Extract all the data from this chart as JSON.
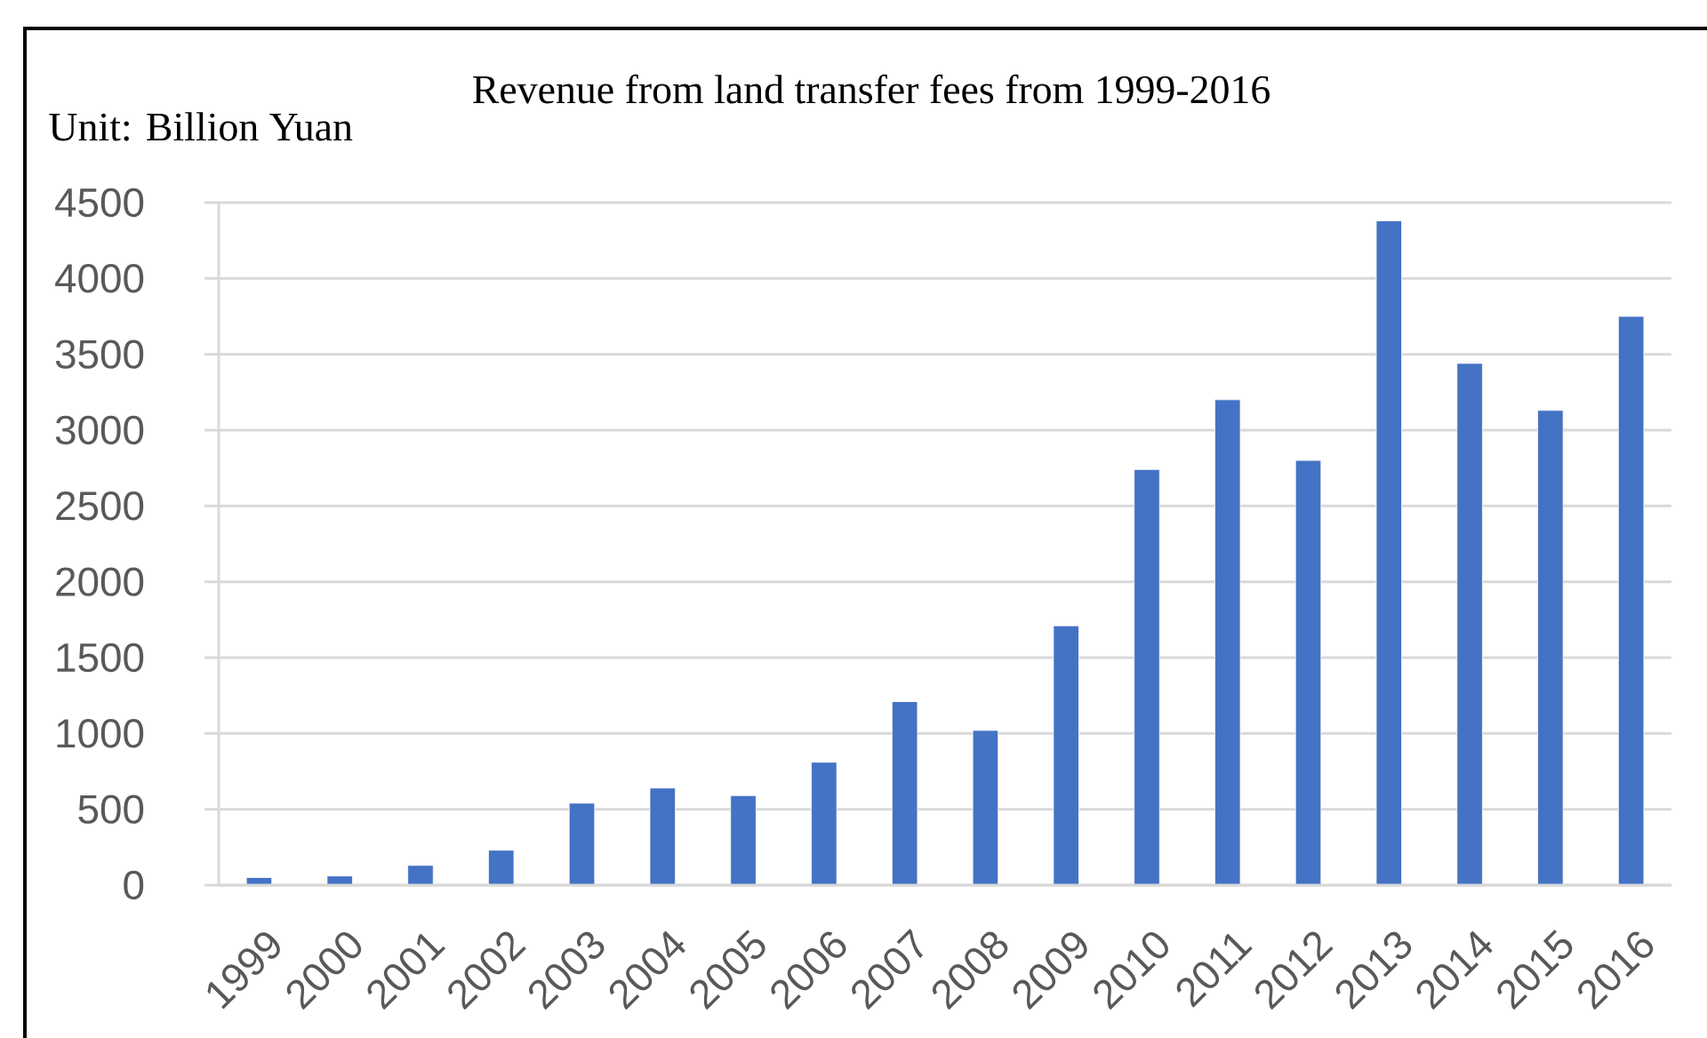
{
  "chart_data": {
    "type": "bar",
    "title": "Revenue from land transfer fees from 1999-2016",
    "annotations": [
      "Unit: Billion Yuan"
    ],
    "categories": [
      "1999",
      "2000",
      "2001",
      "2002",
      "2003",
      "2004",
      "2005",
      "2006",
      "2007",
      "2008",
      "2009",
      "2010",
      "2011",
      "2012",
      "2013",
      "2014",
      "2015",
      "2016"
    ],
    "values": [
      50,
      60,
      130,
      230,
      540,
      640,
      590,
      810,
      1210,
      1020,
      1710,
      2740,
      3200,
      2800,
      4380,
      3440,
      3130,
      3750
    ],
    "color": "#4472c4",
    "ylim": [
      0,
      4500
    ],
    "yticks": [
      0,
      500,
      1000,
      1500,
      2000,
      2500,
      3000,
      3500,
      4000,
      4500
    ],
    "grid": "y"
  }
}
